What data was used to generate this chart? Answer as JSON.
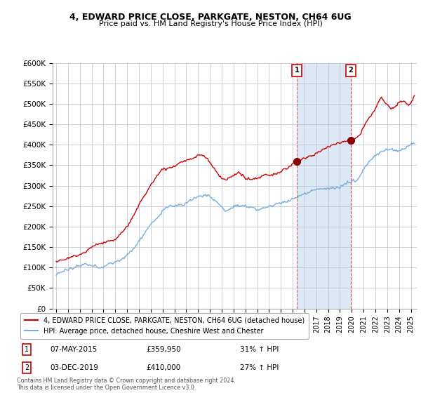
{
  "title": "4, EDWARD PRICE CLOSE, PARKGATE, NESTON, CH64 6UG",
  "subtitle": "Price paid vs. HM Land Registry's House Price Index (HPI)",
  "ylim": [
    0,
    600000
  ],
  "yticks": [
    0,
    50000,
    100000,
    150000,
    200000,
    250000,
    300000,
    350000,
    400000,
    450000,
    500000,
    550000,
    600000
  ],
  "ytick_labels": [
    "£0",
    "£50K",
    "£100K",
    "£150K",
    "£200K",
    "£250K",
    "£300K",
    "£350K",
    "£400K",
    "£450K",
    "£500K",
    "£550K",
    "£600K"
  ],
  "sale1": {
    "date": "07-MAY-2015",
    "price": 359950,
    "label": "1",
    "pct": "31% ↑ HPI",
    "year": 2015.35
  },
  "sale2": {
    "date": "03-DEC-2019",
    "price": 410000,
    "label": "2",
    "pct": "27% ↑ HPI",
    "year": 2019.92
  },
  "legend_property": "4, EDWARD PRICE CLOSE, PARKGATE, NESTON, CH64 6UG (detached house)",
  "legend_hpi": "HPI: Average price, detached house, Cheshire West and Chester",
  "footnote": "Contains HM Land Registry data © Crown copyright and database right 2024.\nThis data is licensed under the Open Government Licence v3.0.",
  "red_color": "#cc0000",
  "blue_color": "#7aadda",
  "shade_color": "#dce9f5",
  "background_color": "#ffffff",
  "xlim_left": 1994.7,
  "xlim_right": 2025.5
}
